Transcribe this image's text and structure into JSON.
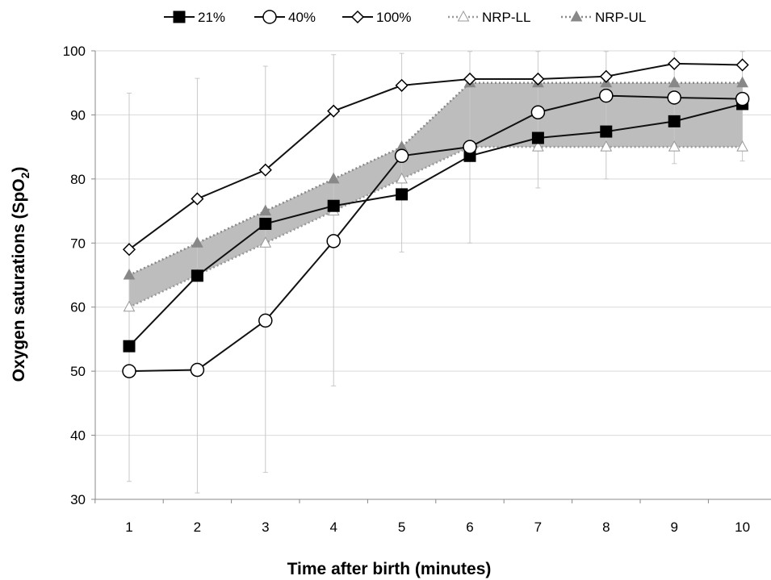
{
  "chart_data": {
    "type": "line",
    "xlabel": "Time after birth (minutes)",
    "ylabel_main": "Oxygen saturations (SpO",
    "ylabel_sub": "2",
    "ylabel_close": ")",
    "x": [
      1,
      2,
      3,
      4,
      5,
      6,
      7,
      8,
      9,
      10
    ],
    "x_tick_labels": [
      "1",
      "2",
      "3",
      "4",
      "5",
      "6",
      "7",
      "8",
      "9",
      "10"
    ],
    "ylim": [
      30,
      100
    ],
    "y_ticks": [
      30,
      40,
      50,
      60,
      70,
      80,
      90,
      100
    ],
    "y_tick_labels": [
      "30",
      "40",
      "50",
      "60",
      "70",
      "80",
      "90",
      "100"
    ],
    "grid": "horizontal",
    "legend_position": "top",
    "series": [
      {
        "name": "21%",
        "marker": "square-filled",
        "line": "solid",
        "color": "#111111",
        "values": [
          53.9,
          64.9,
          73.0,
          75.8,
          77.6,
          83.6,
          86.4,
          87.4,
          89.0,
          91.7
        ]
      },
      {
        "name": "40%",
        "marker": "circle-open",
        "line": "solid",
        "color": "#111111",
        "values": [
          50.0,
          50.2,
          57.9,
          70.3,
          83.6,
          85.0,
          90.4,
          93.0,
          92.7,
          92.5
        ]
      },
      {
        "name": "100%",
        "marker": "diamond-open",
        "line": "solid",
        "color": "#111111",
        "values": [
          69.0,
          76.9,
          81.4,
          90.6,
          94.6,
          95.6,
          95.6,
          96.0,
          98.0,
          97.8
        ]
      },
      {
        "name": "NRP-LL",
        "marker": "triangle-open",
        "line": "dotted",
        "color": "#999999",
        "values": [
          60,
          65,
          70,
          75,
          80,
          85,
          85,
          85,
          85,
          85
        ]
      },
      {
        "name": "NRP-UL",
        "marker": "triangle-filled",
        "line": "dotted",
        "color": "#888888",
        "values": [
          65,
          70,
          75,
          80,
          85,
          95,
          95,
          95,
          95,
          95
        ]
      }
    ],
    "band": {
      "between": [
        "NRP-LL",
        "NRP-UL"
      ],
      "color": "#bdbdbd"
    },
    "error_bars": [
      {
        "x": 1,
        "low": 32.8,
        "high": 93.4
      },
      {
        "x": 2,
        "low": 31.0,
        "high": 95.7
      },
      {
        "x": 3,
        "low": 34.2,
        "high": 97.6
      },
      {
        "x": 4,
        "low": 47.7,
        "high": 99.4
      },
      {
        "x": 5,
        "low": 68.6,
        "high": 99.6
      },
      {
        "x": 6,
        "low": 70.0,
        "high": 99.9
      },
      {
        "x": 7,
        "low": 78.6,
        "high": 99.9
      },
      {
        "x": 8,
        "low": 80.0,
        "high": 99.9
      },
      {
        "x": 9,
        "low": 82.4,
        "high": 99.9
      },
      {
        "x": 10,
        "low": 82.8,
        "high": 99.9
      }
    ]
  }
}
